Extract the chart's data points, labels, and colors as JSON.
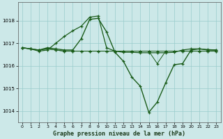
{
  "title": "Graphe pression niveau de la mer (hPa)",
  "bg_color": "#cce8e8",
  "grid_color": "#99cccc",
  "line_color": "#1a5c1a",
  "ylim": [
    1013.5,
    1018.8
  ],
  "xlim": [
    -0.5,
    23.5
  ],
  "yticks": [
    1014,
    1015,
    1016,
    1017,
    1018
  ],
  "xticks": [
    0,
    1,
    2,
    3,
    4,
    5,
    6,
    7,
    8,
    9,
    10,
    11,
    12,
    13,
    14,
    15,
    16,
    17,
    18,
    19,
    20,
    21,
    22,
    23
  ],
  "series1": [
    1016.8,
    1016.75,
    1016.7,
    1016.75,
    1016.7,
    1016.65,
    1016.65,
    1016.65,
    1016.65,
    1016.65,
    1016.65,
    1016.65,
    1016.65,
    1016.65,
    1016.65,
    1016.65,
    1016.65,
    1016.65,
    1016.65,
    1016.65,
    1016.65,
    1016.65,
    1016.65,
    1016.65
  ],
  "series2": [
    1016.8,
    1016.75,
    1016.7,
    1016.75,
    1016.7,
    1016.65,
    1016.65,
    1016.65,
    1016.65,
    1016.65,
    1016.65,
    1016.65,
    1016.65,
    1016.65,
    1016.65,
    1016.65,
    1016.1,
    1016.65,
    1016.65,
    1016.65,
    1016.65,
    1016.65,
    1016.65,
    1016.65
  ],
  "series3": [
    1016.8,
    1016.75,
    1016.65,
    1016.7,
    1017.0,
    1017.3,
    1017.55,
    1017.75,
    1018.15,
    1018.2,
    1016.8,
    1016.65,
    1016.6,
    1016.6,
    1016.58,
    1016.58,
    1016.58,
    1016.58,
    1016.6,
    1016.7,
    1016.75,
    1016.75,
    1016.72,
    1016.7
  ],
  "series4": [
    1016.8,
    1016.75,
    1016.7,
    1016.8,
    1016.75,
    1016.7,
    1016.7,
    1017.2,
    1018.05,
    1018.1,
    1017.5,
    1016.6,
    1016.2,
    1015.5,
    1015.1,
    1013.95,
    1014.4,
    1015.25,
    1016.05,
    1016.1,
    1016.7,
    1016.75,
    1016.7,
    1016.7
  ]
}
